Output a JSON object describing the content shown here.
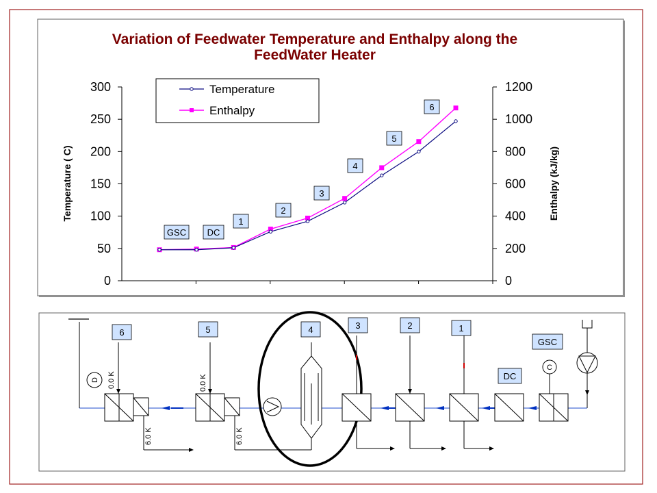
{
  "colors": {
    "frame": "#a02020",
    "temperature": "#0a0a80",
    "enthalpy": "#ff00ff",
    "title": "#7a0000",
    "label_box": "#cfe3ff",
    "pipe": "#4a6fd8",
    "water_arrow": "#0030c0",
    "steam_tick": "#cc0000"
  },
  "chart_data": {
    "type": "line",
    "title": "Variation of Feedwater Temperature and Enthalpy along the FeedWater Heater",
    "title_lines": [
      "Variation of Feedwater Temperature and Enthalpy along the",
      "FeedWater Heater"
    ],
    "ylabel": "Temperature ( C)",
    "y2label": "Enthalpy (kJ/kg)",
    "ylim": [
      0,
      300
    ],
    "y2lim": [
      0,
      1200
    ],
    "yticks": [
      "0",
      "50",
      "100",
      "150",
      "200",
      "250",
      "300"
    ],
    "y2ticks": [
      "0",
      "200",
      "400",
      "600",
      "800",
      "1000",
      "1200"
    ],
    "grid": false,
    "legend_position": "top-left",
    "series": [
      {
        "name": "Temperature",
        "axis": "left",
        "marker": "circle",
        "values": [
          48,
          48,
          51,
          76,
          92,
          121,
          163,
          200,
          247
        ]
      },
      {
        "name": "Enthalpy",
        "axis": "right",
        "marker": "square",
        "values": [
          192,
          196,
          206,
          320,
          388,
          510,
          700,
          862,
          1070
        ]
      }
    ],
    "stage_labels": [
      {
        "text": "GSC",
        "point": 0
      },
      {
        "text": "DC",
        "point": 1
      },
      {
        "text": "1",
        "point": 2
      },
      {
        "text": "2",
        "point": 3
      },
      {
        "text": "3",
        "point": 5
      },
      {
        "text": "4",
        "point": 5.5
      },
      {
        "text": "5",
        "point": 6.4
      },
      {
        "text": "6",
        "point": 7.4
      }
    ]
  },
  "diagram": {
    "labels": {
      "h6": "6",
      "h5": "5",
      "h4": "4",
      "h3": "3",
      "h2": "2",
      "h1": "1",
      "gsc": "GSC",
      "dc": "DC"
    },
    "vertical_texts": {
      "ttd6": "0.0 K",
      "dca6": "6.0 K",
      "ttd5": "0.0 K",
      "dca5": "6.0 K"
    },
    "symbols": {
      "drain_cooler_unit": "D",
      "condenser_unit": "C"
    }
  }
}
